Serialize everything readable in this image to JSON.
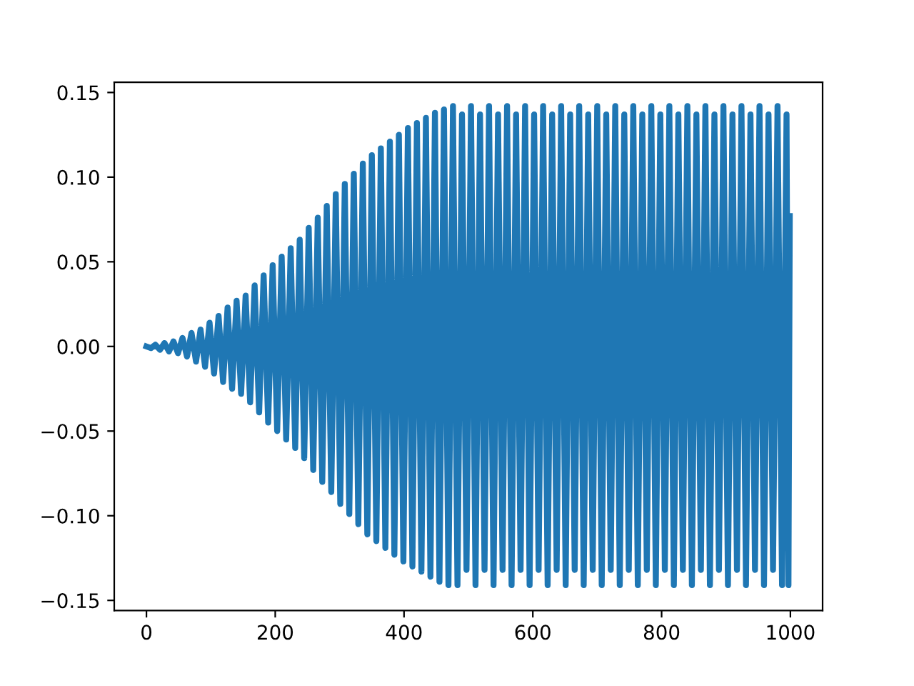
{
  "chart_data": {
    "type": "line",
    "x": [
      0,
      7,
      14,
      21,
      28,
      35,
      42,
      49,
      56,
      63,
      70,
      77,
      84,
      91,
      98,
      105,
      112,
      119,
      126,
      133,
      140,
      147,
      154,
      161,
      168,
      175,
      182,
      189,
      196,
      203,
      210,
      217,
      224,
      231,
      238,
      245,
      252,
      259,
      266,
      273,
      280,
      287,
      294,
      301,
      308,
      315,
      322,
      329,
      336,
      343,
      350,
      357,
      364,
      371,
      378,
      385,
      392,
      399,
      406,
      413,
      420,
      427,
      434,
      441,
      448,
      455,
      462,
      469,
      476,
      483,
      490,
      497,
      504,
      511,
      518,
      525,
      532,
      539,
      546,
      553,
      560,
      567,
      574,
      581,
      588,
      595,
      602,
      609,
      616,
      623,
      630,
      637,
      644,
      651,
      658,
      665,
      672,
      679,
      686,
      693,
      700,
      707,
      714,
      721,
      728,
      735,
      742,
      749,
      756,
      763,
      770,
      777,
      784,
      791,
      798,
      805,
      812,
      819,
      826,
      833,
      840,
      847,
      854,
      861,
      868,
      875,
      882,
      889,
      896,
      903,
      910,
      917,
      924,
      931,
      938,
      945,
      952,
      959,
      966,
      973,
      980,
      987,
      994,
      997,
      999
    ],
    "series": [
      {
        "color": "#1f77b4",
        "values": [
          0,
          -0.001,
          0.001,
          -0.002,
          0.002,
          -0.003,
          0.003,
          -0.004,
          0.005,
          -0.006,
          0.008,
          -0.009,
          0.01,
          -0.012,
          0.014,
          -0.016,
          0.018,
          -0.021,
          0.023,
          -0.025,
          0.027,
          -0.028,
          0.03,
          -0.033,
          0.036,
          -0.039,
          0.042,
          -0.045,
          0.048,
          -0.05,
          0.053,
          -0.055,
          0.058,
          -0.06,
          0.063,
          -0.066,
          0.07,
          -0.073,
          0.076,
          -0.08,
          0.083,
          -0.086,
          0.09,
          -0.093,
          0.096,
          -0.099,
          0.102,
          -0.105,
          0.108,
          -0.111,
          0.113,
          -0.115,
          0.117,
          -0.119,
          0.121,
          -0.123,
          0.125,
          -0.127,
          0.129,
          -0.13,
          0.132,
          -0.133,
          0.135,
          -0.136,
          0.138,
          -0.139,
          0.14,
          -0.141,
          0.142,
          -0.141,
          0.137,
          -0.132,
          0.142,
          -0.141,
          0.137,
          -0.132,
          0.142,
          -0.141,
          0.137,
          -0.132,
          0.142,
          -0.141,
          0.137,
          -0.132,
          0.142,
          -0.141,
          0.137,
          -0.132,
          0.142,
          -0.141,
          0.137,
          -0.132,
          0.142,
          -0.141,
          0.137,
          -0.132,
          0.142,
          -0.141,
          0.137,
          -0.132,
          0.142,
          -0.141,
          0.137,
          -0.132,
          0.142,
          -0.141,
          0.137,
          -0.132,
          0.142,
          -0.141,
          0.137,
          -0.132,
          0.142,
          -0.141,
          0.137,
          -0.132,
          0.142,
          -0.141,
          0.137,
          -0.132,
          0.142,
          -0.141,
          0.137,
          -0.132,
          0.142,
          -0.141,
          0.137,
          -0.132,
          0.142,
          -0.141,
          0.137,
          -0.132,
          0.142,
          -0.141,
          0.137,
          -0.132,
          0.142,
          -0.141,
          0.137,
          -0.132,
          0.142,
          -0.141,
          0.137,
          -0.141,
          0.077
        ]
      }
    ],
    "xlim": [
      -50,
      1050
    ],
    "ylim": [
      -0.156,
      0.156
    ],
    "xticks": [
      0,
      200,
      400,
      600,
      800,
      1000
    ],
    "yticks": [
      {
        "value": -0.15,
        "label": "−0.15"
      },
      {
        "value": -0.1,
        "label": "−0.10"
      },
      {
        "value": -0.05,
        "label": "−0.05"
      },
      {
        "value": 0,
        "label": "0.00"
      },
      {
        "value": 0.05,
        "label": "0.05"
      },
      {
        "value": 0.1,
        "label": "0.10"
      },
      {
        "value": 0.15,
        "label": "0.15"
      }
    ],
    "line_style": "solid",
    "grid": false
  }
}
